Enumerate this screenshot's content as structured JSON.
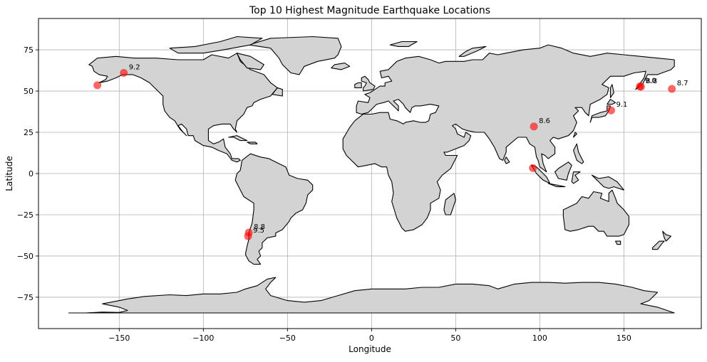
{
  "chart_data": {
    "type": "scatter",
    "title": "Top 10 Highest Magnitude Earthquake Locations",
    "xlabel": "Longitude",
    "ylabel": "Latitude",
    "xlim": [
      -198,
      196
    ],
    "ylim": [
      -94,
      94
    ],
    "grid": true,
    "xticks": [
      -150,
      -100,
      -50,
      0,
      50,
      100,
      150
    ],
    "yticks": [
      -75,
      -50,
      -25,
      0,
      25,
      50,
      75
    ],
    "xtick_labels": [
      "−150",
      "−100",
      "−50",
      "0",
      "50",
      "100",
      "150"
    ],
    "ytick_labels": [
      "−75",
      "−50",
      "−25",
      "0",
      "25",
      "50",
      "75"
    ],
    "marker_color": "#ff0000",
    "land_color": "#d3d3d3",
    "points": [
      {
        "lon": -147.3,
        "lat": 61.0,
        "label": "9.2"
      },
      {
        "lon": -163.0,
        "lat": 53.5,
        "label": ""
      },
      {
        "lon": -73.0,
        "lat": -35.8,
        "label": "8.8"
      },
      {
        "lon": -73.4,
        "lat": -38.0,
        "label": "9.5"
      },
      {
        "lon": 96.5,
        "lat": 28.5,
        "label": "8.6"
      },
      {
        "lon": 95.9,
        "lat": 3.3,
        "label": ""
      },
      {
        "lon": 142.4,
        "lat": 38.3,
        "label": "9.1"
      },
      {
        "lon": 159.5,
        "lat": 52.8,
        "label": "9.0"
      },
      {
        "lon": 160.1,
        "lat": 52.6,
        "label": "8.8"
      },
      {
        "lon": 178.5,
        "lat": 51.3,
        "label": "8.7"
      }
    ]
  }
}
